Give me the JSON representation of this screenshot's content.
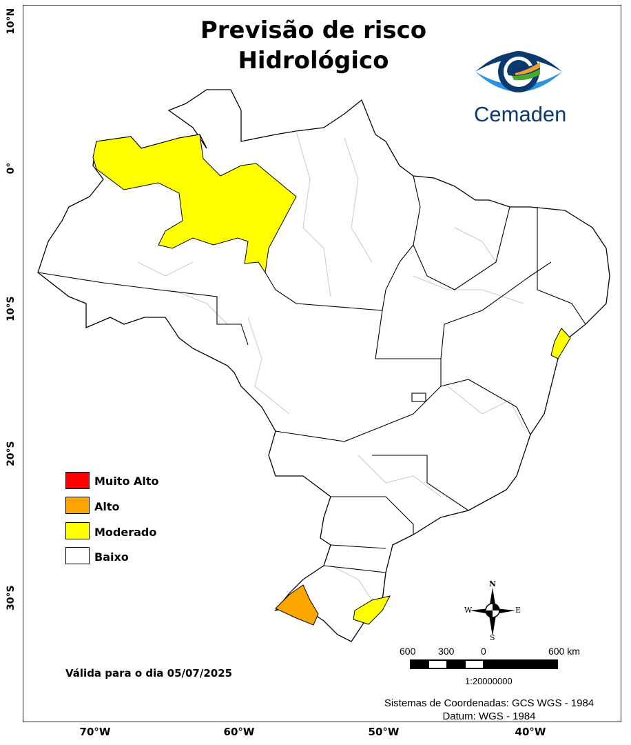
{
  "title": {
    "line1": "Previsão de risco",
    "line2": "Hidrológico"
  },
  "logo": {
    "text": "Cemaden",
    "colors": [
      "#0d3a6e",
      "#2a93dc",
      "#f2a22c",
      "#4aa832"
    ]
  },
  "axes": {
    "latitude_labels": [
      "10°N",
      "0°",
      "10°S",
      "20°S",
      "30°S"
    ],
    "longitude_labels": [
      "70°W",
      "60°W",
      "50°W",
      "40°W"
    ]
  },
  "legend": {
    "items": [
      {
        "label": "Muito Alto",
        "color": "#ff0000"
      },
      {
        "label": "Alto",
        "color": "#ffa500"
      },
      {
        "label": "Moderado",
        "color": "#ffff00"
      },
      {
        "label": "Baixo",
        "color": "#ffffff"
      }
    ]
  },
  "valid_date": "Válida para o dia 05/07/2025",
  "compass": {
    "n": "N",
    "s": "S",
    "e": "E",
    "w": "W"
  },
  "scale_bar": {
    "labels": [
      "600",
      "300",
      "0",
      "600 km"
    ],
    "ratio": "1:20000000"
  },
  "credits": {
    "coords": "Sistemas de Coordenadas: GCS WGS - 1984",
    "datum": "Datum: WGS - 1984"
  }
}
